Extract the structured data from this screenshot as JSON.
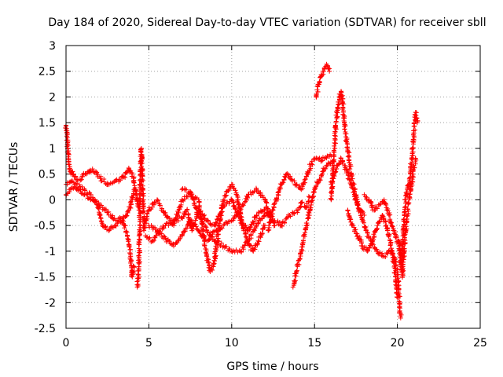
{
  "chart_data": {
    "type": "scatter",
    "title": "Day 184 of 2020, Sidereal Day-to-day VTEC variation (SDTVAR) for receiver sbll",
    "xlabel": "GPS time / hours",
    "ylabel": "SDTVAR / TECUs",
    "xlim": [
      0,
      25
    ],
    "ylim": [
      -2.5,
      3
    ],
    "xticks": [
      0,
      5,
      10,
      15,
      20,
      25
    ],
    "yticks": [
      -2.5,
      -2,
      -1.5,
      -1,
      -0.5,
      0,
      0.5,
      1,
      1.5,
      2,
      2.5,
      3
    ],
    "xtick_labels": [
      "0",
      "5",
      "10",
      "15",
      "20",
      "25"
    ],
    "ytick_labels": [
      "-2.5",
      "-2",
      "-1.5",
      "-1",
      "-0.5",
      "0",
      "0.5",
      "1",
      "1.5",
      "2",
      "2.5",
      "3"
    ],
    "grid": true,
    "legend": "none",
    "marker": "+",
    "color": "#ff0000",
    "series": [
      {
        "x": [
          0.0,
          0.05,
          0.1,
          0.15,
          0.2,
          0.3,
          0.4,
          0.5,
          0.6,
          0.8,
          1.0,
          1.2,
          1.4,
          1.6,
          1.8,
          2.0,
          2.3,
          2.6,
          2.9,
          3.2,
          3.5,
          3.8,
          4.0,
          4.2,
          4.3,
          4.4
        ],
        "y": [
          1.45,
          1.3,
          1.0,
          0.8,
          0.6,
          0.5,
          0.55,
          0.45,
          0.4,
          0.4,
          0.45,
          0.5,
          0.55,
          0.6,
          0.55,
          0.45,
          0.35,
          0.3,
          0.35,
          0.4,
          0.45,
          0.6,
          0.5,
          0.2,
          0.0,
          -0.2
        ]
      },
      {
        "x": [
          0.0,
          0.2,
          0.5,
          0.8,
          1.1,
          1.5,
          2.0,
          2.5,
          3.0,
          3.5,
          3.8,
          4.0,
          4.1
        ],
        "y": [
          0.1,
          0.2,
          0.25,
          0.2,
          0.1,
          0.0,
          -0.1,
          -0.25,
          -0.4,
          -0.35,
          -0.2,
          0.0,
          0.2
        ]
      },
      {
        "x": [
          0.0,
          0.3,
          0.6,
          1.0,
          1.5,
          1.9,
          2.2,
          2.6,
          3.0,
          3.4,
          3.7,
          3.9,
          4.0,
          4.1
        ],
        "y": [
          0.3,
          0.35,
          0.3,
          0.2,
          0.1,
          -0.1,
          -0.5,
          -0.6,
          -0.5,
          -0.4,
          -0.7,
          -1.1,
          -1.5,
          -1.3
        ]
      },
      {
        "x": [
          4.3,
          4.4,
          4.45,
          4.5,
          4.55,
          4.6,
          4.7
        ],
        "y": [
          -1.7,
          -1.3,
          -0.5,
          0.5,
          1.0,
          0.4,
          -0.5
        ]
      },
      {
        "x": [
          4.8,
          5.2,
          5.6,
          6.0,
          6.5,
          7.0,
          7.3,
          7.6,
          8.0,
          8.5,
          9.0,
          9.5,
          10.0,
          10.5,
          11.0,
          11.5,
          12.0,
          12.5,
          13.0,
          13.5,
          14.0,
          14.2,
          14.5,
          14.7
        ],
        "y": [
          -0.7,
          -0.8,
          -0.6,
          -0.5,
          -0.4,
          -0.35,
          -0.2,
          -0.6,
          -0.2,
          -0.4,
          -0.5,
          -0.1,
          0.0,
          -0.4,
          -0.6,
          -0.3,
          -0.2,
          -0.4,
          -0.5,
          -0.3,
          -0.2,
          -0.05,
          -0.15,
          0.05
        ]
      },
      {
        "x": [
          4.7,
          5.0,
          5.5,
          6.0,
          6.5,
          7.0,
          7.5,
          8.0,
          8.3,
          8.5,
          8.7,
          8.9,
          9.2,
          9.5,
          10.0,
          10.3,
          10.6,
          11.0,
          11.3,
          11.6,
          12.0
        ],
        "y": [
          -0.6,
          -0.2,
          0.0,
          -0.3,
          -0.5,
          0.0,
          0.1,
          0.0,
          -0.7,
          -1.1,
          -1.4,
          -1.3,
          -0.6,
          0.0,
          0.3,
          0.1,
          -0.4,
          -0.85,
          -1.0,
          -0.8,
          -0.5
        ]
      },
      {
        "x": [
          7.0,
          7.5,
          8.0,
          8.5,
          9.0,
          9.5,
          10.0,
          10.5,
          11.0,
          11.5,
          12.0,
          12.5
        ],
        "y": [
          0.2,
          0.15,
          -0.3,
          -0.6,
          -0.8,
          -0.9,
          -1.0,
          -1.0,
          -0.8,
          -0.5,
          -0.3,
          -0.2
        ]
      },
      {
        "x": [
          5.0,
          5.5,
          6.0,
          6.5,
          7.0,
          7.5,
          8.0,
          8.5,
          9.0,
          9.5,
          10.0,
          10.5,
          11.0,
          11.5,
          12.0,
          12.3,
          12.6
        ],
        "y": [
          -0.5,
          -0.6,
          -0.75,
          -0.9,
          -0.7,
          -0.4,
          -0.6,
          -0.8,
          -0.6,
          -0.5,
          -0.4,
          -0.2,
          0.1,
          0.2,
          0.0,
          -0.3,
          -0.5
        ]
      },
      {
        "x": [
          12.2,
          12.5,
          12.8,
          13.0,
          13.3,
          13.6,
          13.9,
          14.2,
          14.5,
          14.8,
          15.0,
          15.2,
          15.4,
          15.6,
          15.8,
          16.0
        ],
        "y": [
          -0.6,
          -0.2,
          0.1,
          0.3,
          0.5,
          0.4,
          0.3,
          0.2,
          0.45,
          0.7,
          0.8,
          0.8,
          0.75,
          0.8,
          0.85,
          0.85
        ]
      },
      {
        "x": [
          13.7,
          13.9,
          14.2,
          14.5,
          14.8,
          15.0,
          15.3,
          15.6,
          15.9,
          16.1
        ],
        "y": [
          -1.7,
          -1.4,
          -1.0,
          -0.5,
          -0.1,
          0.2,
          0.4,
          0.6,
          0.7,
          0.75
        ]
      },
      {
        "x": [
          15.1,
          15.2,
          15.3,
          15.4,
          15.5,
          15.6,
          15.7,
          15.8,
          15.9
        ],
        "y": [
          2.0,
          2.2,
          2.3,
          2.4,
          2.5,
          2.55,
          2.6,
          2.6,
          2.5
        ]
      },
      {
        "x": [
          16.0,
          16.1,
          16.2,
          16.3,
          16.4,
          16.5,
          16.6,
          16.7,
          16.8,
          17.0,
          17.2,
          17.4,
          17.6,
          17.8,
          18.0
        ],
        "y": [
          0.0,
          0.5,
          1.0,
          1.5,
          1.8,
          2.0,
          2.1,
          1.9,
          1.5,
          1.0,
          0.5,
          0.2,
          -0.1,
          -0.2,
          -0.3
        ]
      },
      {
        "x": [
          16.0,
          16.3,
          16.6,
          16.9,
          17.2,
          17.5,
          17.8,
          18.1,
          18.4,
          18.8,
          19.2,
          19.6,
          19.8,
          19.9,
          20.0
        ],
        "y": [
          0.3,
          0.6,
          0.8,
          0.6,
          0.3,
          0.0,
          -0.3,
          -0.6,
          -0.8,
          -1.0,
          -1.1,
          -1.0,
          -1.2,
          -1.6,
          -1.9
        ]
      },
      {
        "x": [
          17.0,
          17.3,
          17.6,
          17.9,
          18.2,
          18.5,
          18.8,
          19.1,
          19.4,
          19.7,
          20.0,
          20.2
        ],
        "y": [
          -0.2,
          -0.5,
          -0.7,
          -0.9,
          -1.0,
          -0.8,
          -0.5,
          -0.3,
          -0.6,
          -1.0,
          -1.4,
          -2.3
        ]
      },
      {
        "x": [
          18.0,
          18.3,
          18.6,
          18.9,
          19.2,
          19.5,
          19.8,
          20.1,
          20.3
        ],
        "y": [
          0.1,
          0.0,
          -0.2,
          -0.1,
          0.0,
          -0.3,
          -0.6,
          -0.9,
          -1.1
        ]
      },
      {
        "x": [
          20.2,
          20.3,
          20.4,
          20.5,
          20.6,
          20.7,
          20.8,
          20.9,
          21.0,
          21.1,
          21.2
        ],
        "y": [
          -1.3,
          -1.0,
          -0.5,
          0.0,
          0.2,
          0.3,
          0.6,
          0.9,
          1.3,
          1.7,
          1.5
        ]
      },
      {
        "x": [
          20.1,
          20.3,
          20.5,
          20.7,
          20.9,
          21.1
        ],
        "y": [
          -0.8,
          -1.5,
          -0.6,
          0.0,
          0.4,
          0.8
        ]
      }
    ]
  }
}
